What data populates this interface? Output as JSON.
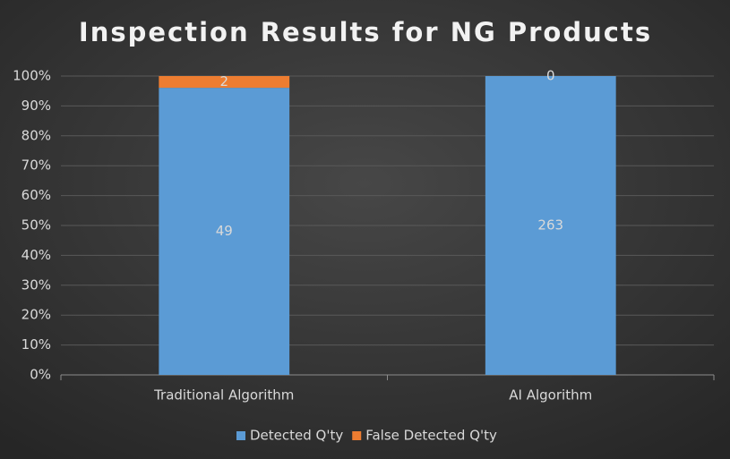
{
  "chart_data": {
    "type": "bar",
    "stacking": "percent",
    "title": "Inspection Results for NG Products",
    "categories": [
      "Traditional Algorithm",
      "AI Algorithm"
    ],
    "series": [
      {
        "name": "Detected Q'ty",
        "color": "#5b9bd5",
        "values": [
          49,
          263
        ]
      },
      {
        "name": "False Detected Q'ty",
        "color": "#ed7d31",
        "values": [
          2,
          0
        ]
      }
    ],
    "ylim": [
      0,
      100
    ],
    "yticks": [
      {
        "value": 0,
        "label": "0%"
      },
      {
        "value": 10,
        "label": "10%"
      },
      {
        "value": 20,
        "label": "20%"
      },
      {
        "value": 30,
        "label": "30%"
      },
      {
        "value": 40,
        "label": "40%"
      },
      {
        "value": 50,
        "label": "50%"
      },
      {
        "value": 60,
        "label": "60%"
      },
      {
        "value": 70,
        "label": "70%"
      },
      {
        "value": 80,
        "label": "80%"
      },
      {
        "value": 90,
        "label": "90%"
      },
      {
        "value": 100,
        "label": "100%"
      }
    ],
    "grid": true,
    "legend": "bottom"
  }
}
